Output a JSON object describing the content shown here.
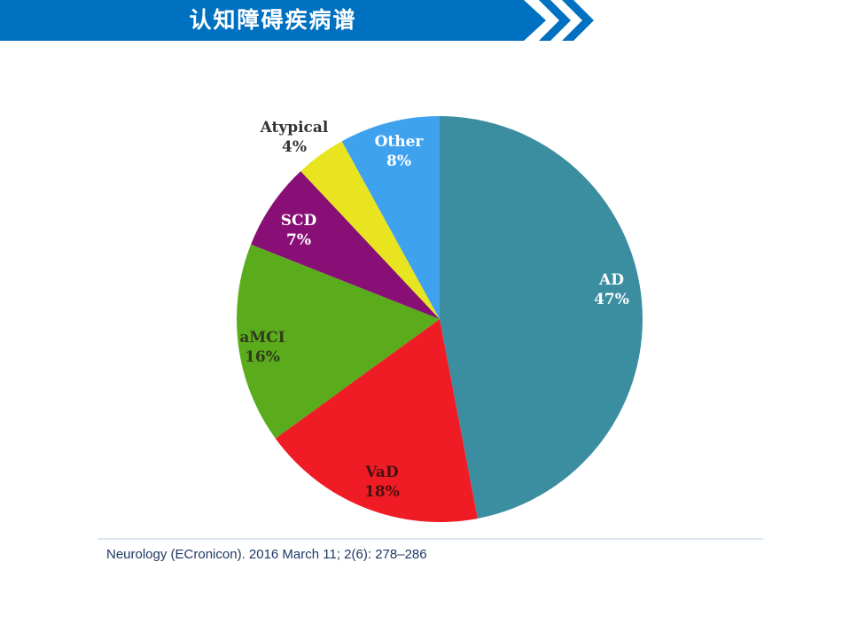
{
  "header": {
    "title": "认知障碍疾病谱",
    "bar_color": "#0070C0",
    "chevron_color": "#0070C0"
  },
  "chart_data": {
    "type": "pie",
    "title": "",
    "start_angle_deg": 0,
    "direction": "clockwise",
    "legend_position": "none",
    "slices": [
      {
        "label": "AD",
        "value": 47,
        "display": "47%",
        "color": "#3B8DA0",
        "label_color": "#FFFFFF"
      },
      {
        "label": "VaD",
        "value": 18,
        "display": "18%",
        "color": "#EF1C26",
        "label_color": "#47120F"
      },
      {
        "label": "aMCI",
        "value": 16,
        "display": "16%",
        "color": "#5AAC1C",
        "label_color": "#32391C"
      },
      {
        "label": "SCD",
        "value": 7,
        "display": "7%",
        "color": "#870F75",
        "label_color": "#FFFFFF"
      },
      {
        "label": "Atypical",
        "value": 4,
        "display": "4%",
        "color": "#E8E420",
        "label_color": "#333333"
      },
      {
        "label": "Other",
        "value": 8,
        "display": "8%",
        "color": "#3FA2EF",
        "label_color": "#FFFFFF"
      }
    ]
  },
  "citation": {
    "text": "Neurology (ECronicon). 2016 March 11; 2(6): 278–286",
    "color": "#1F3864"
  }
}
